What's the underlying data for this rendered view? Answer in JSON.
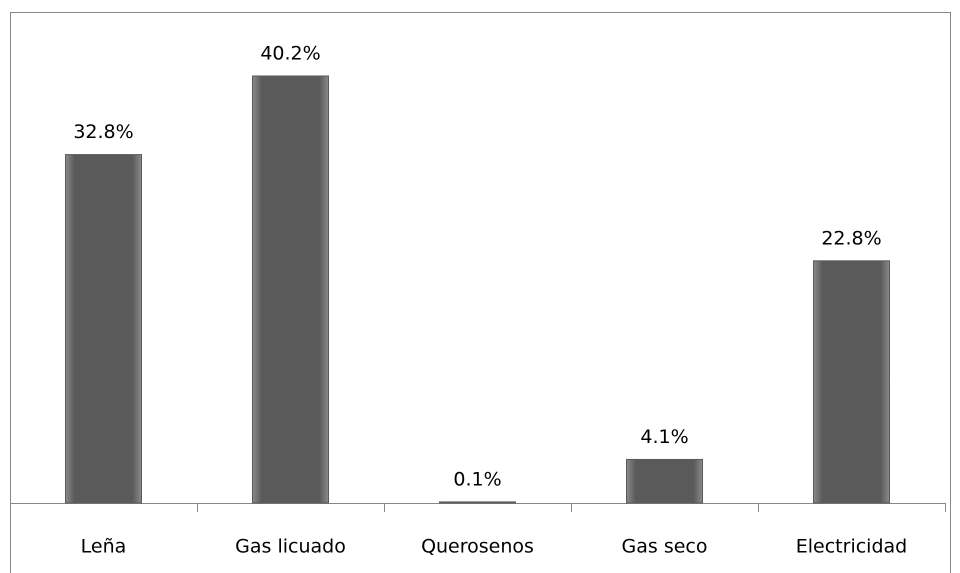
{
  "chart_data": {
    "type": "bar",
    "categories": [
      "Leña",
      "Gas licuado",
      "Querosenos",
      "Gas seco",
      "Electricidad"
    ],
    "values": [
      32.8,
      40.2,
      0.1,
      4.1,
      22.8
    ],
    "value_labels": [
      "32.8%",
      "40.2%",
      "0.1%",
      "4.1%",
      "22.8%"
    ],
    "color": "#5a5a5a",
    "ylim": [
      0,
      45
    ]
  }
}
